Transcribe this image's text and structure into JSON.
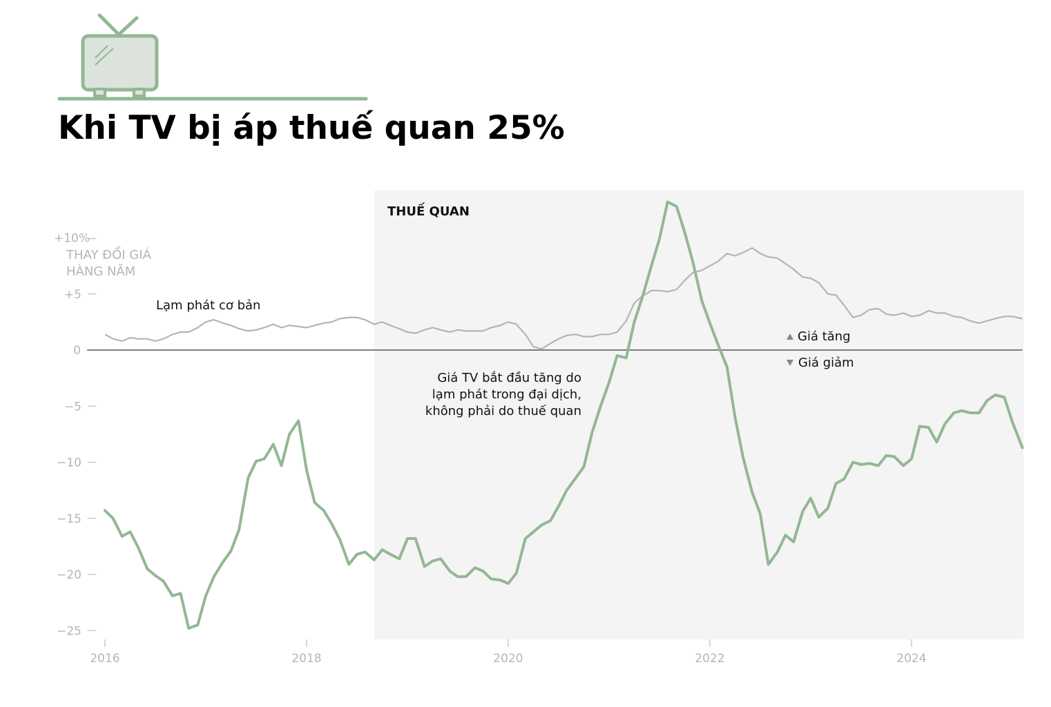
{
  "title": "Khi TV bị áp thuế quan 25%",
  "icon": "tv-icon",
  "colors": {
    "tv_line": "#93b793",
    "inflation_line": "#b4b4b4",
    "tariff_band": "#f4f4f4",
    "zero_line": "#555555"
  },
  "chart_data": {
    "type": "line",
    "title": "Khi TV bị áp thuế quan 25%",
    "ylabel": "THAY ĐỔI GIÁ HÀNG NĂM",
    "ylabel_lines": [
      "THAY ĐỔI GIÁ",
      "HÀNG NĂM"
    ],
    "xlim": [
      2016,
      2025.1
    ],
    "ylim": [
      -25.7,
      13.2
    ],
    "x_ticks": [
      {
        "value": 2016,
        "label": "2016"
      },
      {
        "value": 2018,
        "label": "2018"
      },
      {
        "value": 2020,
        "label": "2020"
      },
      {
        "value": 2022,
        "label": "2022"
      },
      {
        "value": 2024,
        "label": "2024"
      }
    ],
    "y_ticks": [
      {
        "value": 10,
        "label": "+10%"
      },
      {
        "value": 5,
        "label": "+5"
      },
      {
        "value": 0,
        "label": "0"
      },
      {
        "value": -5,
        "label": "−5"
      },
      {
        "value": -10,
        "label": "−10"
      },
      {
        "value": -15,
        "label": "−15"
      },
      {
        "value": -20,
        "label": "−20"
      },
      {
        "value": -25,
        "label": "−25"
      }
    ],
    "tariff_period": {
      "start": 2018.67,
      "end": 2025.1,
      "label": "THUẾ QUAN"
    },
    "legend": {
      "up": "Giá tăng",
      "down": "Giá giảm"
    },
    "annotations": {
      "core_inflation": "Lạm phát cơ bản",
      "pandemic_note": [
        "Giá TV bắt đầu tăng do",
        "lạm phát trong đại dịch,",
        "không phải do thuế quan"
      ]
    },
    "series": [
      {
        "key": "tv",
        "points": [
          [
            2016.0,
            -14.3
          ],
          [
            2016.08,
            -15.0
          ],
          [
            2016.17,
            -16.6
          ],
          [
            2016.25,
            -16.2
          ],
          [
            2016.33,
            -17.6
          ],
          [
            2016.42,
            -19.5
          ],
          [
            2016.5,
            -20.1
          ],
          [
            2016.58,
            -20.6
          ],
          [
            2016.67,
            -21.9
          ],
          [
            2016.75,
            -21.7
          ],
          [
            2016.83,
            -24.8
          ],
          [
            2016.92,
            -24.5
          ],
          [
            2017.0,
            -21.9
          ],
          [
            2017.08,
            -20.2
          ],
          [
            2017.17,
            -18.9
          ],
          [
            2017.25,
            -17.9
          ],
          [
            2017.33,
            -16.0
          ],
          [
            2017.42,
            -11.4
          ],
          [
            2017.5,
            -9.9
          ],
          [
            2017.58,
            -9.7
          ],
          [
            2017.67,
            -8.4
          ],
          [
            2017.75,
            -10.3
          ],
          [
            2017.83,
            -7.5
          ],
          [
            2017.92,
            -6.3
          ],
          [
            2018.0,
            -10.7
          ],
          [
            2018.08,
            -13.6
          ],
          [
            2018.17,
            -14.3
          ],
          [
            2018.25,
            -15.5
          ],
          [
            2018.33,
            -16.9
          ],
          [
            2018.42,
            -19.1
          ],
          [
            2018.5,
            -18.2
          ],
          [
            2018.58,
            -18.0
          ],
          [
            2018.67,
            -18.7
          ],
          [
            2018.75,
            -17.8
          ],
          [
            2018.83,
            -18.2
          ],
          [
            2018.92,
            -18.6
          ],
          [
            2019.0,
            -16.8
          ],
          [
            2019.08,
            -16.8
          ],
          [
            2019.17,
            -19.3
          ],
          [
            2019.25,
            -18.8
          ],
          [
            2019.33,
            -18.6
          ],
          [
            2019.42,
            -19.7
          ],
          [
            2019.5,
            -20.2
          ],
          [
            2019.58,
            -20.2
          ],
          [
            2019.67,
            -19.4
          ],
          [
            2019.75,
            -19.7
          ],
          [
            2019.83,
            -20.4
          ],
          [
            2019.92,
            -20.5
          ],
          [
            2020.0,
            -20.8
          ],
          [
            2020.08,
            -19.9
          ],
          [
            2020.17,
            -16.8
          ],
          [
            2020.25,
            -16.2
          ],
          [
            2020.33,
            -15.6
          ],
          [
            2020.42,
            -15.2
          ],
          [
            2020.5,
            -13.9
          ],
          [
            2020.58,
            -12.5
          ],
          [
            2020.67,
            -11.4
          ],
          [
            2020.75,
            -10.4
          ],
          [
            2020.83,
            -7.4
          ],
          [
            2020.92,
            -4.9
          ],
          [
            2021.0,
            -2.9
          ],
          [
            2021.08,
            -0.5
          ],
          [
            2021.17,
            -0.7
          ],
          [
            2021.25,
            2.5
          ],
          [
            2021.33,
            4.7
          ],
          [
            2021.42,
            7.5
          ],
          [
            2021.5,
            9.9
          ],
          [
            2021.58,
            13.2
          ],
          [
            2021.67,
            12.8
          ],
          [
            2021.75,
            10.5
          ],
          [
            2021.83,
            7.9
          ],
          [
            2021.92,
            4.4
          ],
          [
            2022.0,
            2.4
          ],
          [
            2022.08,
            0.5
          ],
          [
            2022.17,
            -1.5
          ],
          [
            2022.25,
            -6.0
          ],
          [
            2022.33,
            -9.6
          ],
          [
            2022.42,
            -12.7
          ],
          [
            2022.5,
            -14.6
          ],
          [
            2022.58,
            -19.1
          ],
          [
            2022.67,
            -18.0
          ],
          [
            2022.75,
            -16.5
          ],
          [
            2022.83,
            -17.1
          ],
          [
            2022.92,
            -14.4
          ],
          [
            2023.0,
            -13.2
          ],
          [
            2023.08,
            -14.9
          ],
          [
            2023.17,
            -14.1
          ],
          [
            2023.25,
            -11.9
          ],
          [
            2023.33,
            -11.5
          ],
          [
            2023.42,
            -10.0
          ],
          [
            2023.5,
            -10.2
          ],
          [
            2023.58,
            -10.1
          ],
          [
            2023.67,
            -10.3
          ],
          [
            2023.75,
            -9.4
          ],
          [
            2023.83,
            -9.5
          ],
          [
            2023.92,
            -10.3
          ],
          [
            2024.0,
            -9.7
          ],
          [
            2024.08,
            -6.8
          ],
          [
            2024.17,
            -6.9
          ],
          [
            2024.25,
            -8.2
          ],
          [
            2024.33,
            -6.6
          ],
          [
            2024.42,
            -5.6
          ],
          [
            2024.5,
            -5.4
          ],
          [
            2024.58,
            -5.6
          ],
          [
            2024.67,
            -5.6
          ],
          [
            2024.75,
            -4.5
          ],
          [
            2024.83,
            -4.0
          ],
          [
            2024.92,
            -4.2
          ],
          [
            2025.0,
            -6.4
          ],
          [
            2025.1,
            -8.7
          ]
        ]
      },
      {
        "key": "core",
        "name": "Lạm phát cơ bản",
        "points": [
          [
            2016.0,
            1.4
          ],
          [
            2016.08,
            1.0
          ],
          [
            2016.17,
            0.8
          ],
          [
            2016.25,
            1.1
          ],
          [
            2016.33,
            1.0
          ],
          [
            2016.42,
            1.0
          ],
          [
            2016.5,
            0.8
          ],
          [
            2016.58,
            1.0
          ],
          [
            2016.67,
            1.4
          ],
          [
            2016.75,
            1.6
          ],
          [
            2016.83,
            1.6
          ],
          [
            2016.92,
            2.0
          ],
          [
            2017.0,
            2.5
          ],
          [
            2017.08,
            2.7
          ],
          [
            2017.17,
            2.4
          ],
          [
            2017.25,
            2.2
          ],
          [
            2017.33,
            1.9
          ],
          [
            2017.42,
            1.7
          ],
          [
            2017.5,
            1.8
          ],
          [
            2017.58,
            2.0
          ],
          [
            2017.67,
            2.3
          ],
          [
            2017.75,
            2.0
          ],
          [
            2017.83,
            2.2
          ],
          [
            2017.92,
            2.1
          ],
          [
            2018.0,
            2.0
          ],
          [
            2018.08,
            2.2
          ],
          [
            2018.17,
            2.4
          ],
          [
            2018.25,
            2.5
          ],
          [
            2018.33,
            2.8
          ],
          [
            2018.42,
            2.9
          ],
          [
            2018.5,
            2.9
          ],
          [
            2018.58,
            2.7
          ],
          [
            2018.67,
            2.3
          ],
          [
            2018.75,
            2.5
          ],
          [
            2018.83,
            2.2
          ],
          [
            2018.92,
            1.9
          ],
          [
            2019.0,
            1.6
          ],
          [
            2019.08,
            1.5
          ],
          [
            2019.17,
            1.8
          ],
          [
            2019.25,
            2.0
          ],
          [
            2019.33,
            1.8
          ],
          [
            2019.42,
            1.6
          ],
          [
            2019.5,
            1.8
          ],
          [
            2019.58,
            1.7
          ],
          [
            2019.67,
            1.7
          ],
          [
            2019.75,
            1.7
          ],
          [
            2019.83,
            2.0
          ],
          [
            2019.92,
            2.2
          ],
          [
            2020.0,
            2.5
          ],
          [
            2020.08,
            2.3
          ],
          [
            2020.17,
            1.4
          ],
          [
            2020.25,
            0.3
          ],
          [
            2020.33,
            0.1
          ],
          [
            2020.42,
            0.6
          ],
          [
            2020.5,
            1.0
          ],
          [
            2020.58,
            1.3
          ],
          [
            2020.67,
            1.4
          ],
          [
            2020.75,
            1.2
          ],
          [
            2020.83,
            1.2
          ],
          [
            2020.92,
            1.4
          ],
          [
            2021.0,
            1.4
          ],
          [
            2021.08,
            1.6
          ],
          [
            2021.17,
            2.6
          ],
          [
            2021.25,
            4.2
          ],
          [
            2021.33,
            4.8
          ],
          [
            2021.42,
            5.3
          ],
          [
            2021.5,
            5.3
          ],
          [
            2021.58,
            5.2
          ],
          [
            2021.67,
            5.4
          ],
          [
            2021.75,
            6.2
          ],
          [
            2021.83,
            6.9
          ],
          [
            2021.92,
            7.1
          ],
          [
            2022.0,
            7.5
          ],
          [
            2022.08,
            7.9
          ],
          [
            2022.17,
            8.6
          ],
          [
            2022.25,
            8.4
          ],
          [
            2022.33,
            8.7
          ],
          [
            2022.42,
            9.1
          ],
          [
            2022.5,
            8.6
          ],
          [
            2022.58,
            8.3
          ],
          [
            2022.67,
            8.2
          ],
          [
            2022.75,
            7.7
          ],
          [
            2022.83,
            7.2
          ],
          [
            2022.92,
            6.5
          ],
          [
            2023.0,
            6.4
          ],
          [
            2023.08,
            6.0
          ],
          [
            2023.17,
            5.0
          ],
          [
            2023.25,
            4.9
          ],
          [
            2023.33,
            4.0
          ],
          [
            2023.42,
            2.9
          ],
          [
            2023.5,
            3.1
          ],
          [
            2023.58,
            3.6
          ],
          [
            2023.67,
            3.7
          ],
          [
            2023.75,
            3.2
          ],
          [
            2023.83,
            3.1
          ],
          [
            2023.92,
            3.3
          ],
          [
            2024.0,
            3.0
          ],
          [
            2024.08,
            3.1
          ],
          [
            2024.17,
            3.5
          ],
          [
            2024.25,
            3.3
          ],
          [
            2024.33,
            3.3
          ],
          [
            2024.42,
            3.0
          ],
          [
            2024.5,
            2.9
          ],
          [
            2024.58,
            2.6
          ],
          [
            2024.67,
            2.4
          ],
          [
            2024.75,
            2.6
          ],
          [
            2024.83,
            2.8
          ],
          [
            2024.92,
            3.0
          ],
          [
            2025.0,
            3.0
          ],
          [
            2025.1,
            2.8
          ]
        ]
      }
    ]
  }
}
